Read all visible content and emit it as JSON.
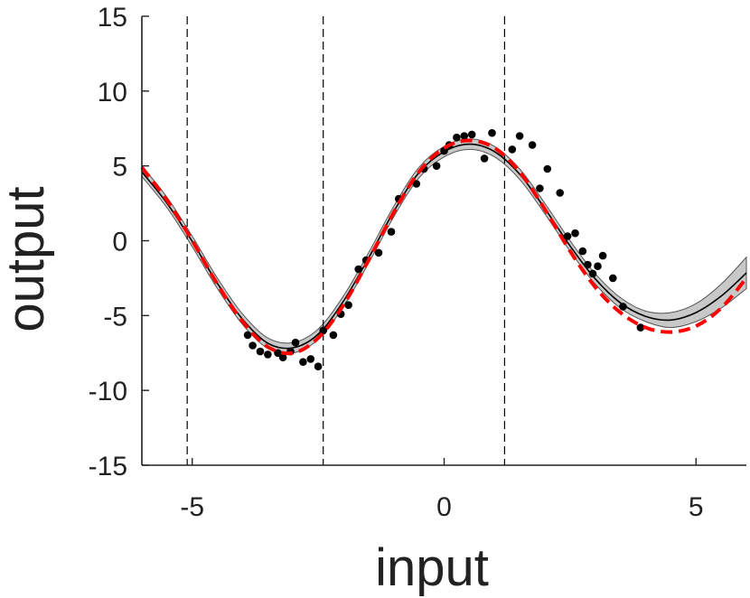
{
  "chart_data": {
    "type": "line",
    "xlabel": "input",
    "ylabel": "output",
    "xlim": [
      -6,
      6
    ],
    "ylim": [
      -15,
      15
    ],
    "xticks": [
      "-5",
      "0",
      "5"
    ],
    "yticks": [
      "15",
      "10",
      "5",
      "0",
      "-5",
      "-10",
      "-15"
    ],
    "xtick_values": [
      -5,
      0,
      5
    ],
    "ytick_values": [
      15,
      10,
      5,
      0,
      -5,
      -10,
      -15
    ],
    "grid": false,
    "box": "left-bottom",
    "vlines": [
      -5.1,
      -2.4,
      1.2
    ],
    "series": [
      {
        "role": "confidence-band",
        "color": "#c8c8c8",
        "x": [
          -6,
          -5.5,
          -5,
          -4.5,
          -4,
          -3.5,
          -3,
          -2.5,
          -2,
          -1.5,
          -1,
          -0.5,
          0,
          0.5,
          1,
          1.5,
          2,
          2.5,
          3,
          3.5,
          4,
          4.5,
          5,
          5.5,
          6
        ],
        "upper": [
          5.0,
          2.9,
          0.3,
          -2.5,
          -4.9,
          -6.5,
          -6.8,
          -5.9,
          -3.7,
          -0.8,
          2.3,
          4.9,
          6.3,
          6.8,
          6.3,
          4.8,
          2.5,
          0.0,
          -2.2,
          -3.8,
          -4.7,
          -4.8,
          -4.2,
          -2.9,
          -1.1
        ],
        "lower": [
          4.3,
          2.2,
          -0.4,
          -3.2,
          -5.6,
          -7.2,
          -7.5,
          -6.6,
          -4.4,
          -1.5,
          1.6,
          4.2,
          5.6,
          6.1,
          5.6,
          4.1,
          1.8,
          -0.7,
          -2.9,
          -4.5,
          -5.4,
          -5.8,
          -5.4,
          -4.5,
          -3.2
        ]
      },
      {
        "role": "mean",
        "color": "#000000",
        "x": [
          -6,
          -5.5,
          -5,
          -4.5,
          -4,
          -3.5,
          -3,
          -2.5,
          -2,
          -1.5,
          -1,
          -0.5,
          0,
          0.5,
          1,
          1.5,
          2,
          2.5,
          3,
          3.5,
          4,
          4.5,
          5,
          5.5,
          6
        ],
        "y": [
          4.6,
          2.5,
          -0.05,
          -2.85,
          -5.25,
          -6.85,
          -7.15,
          -6.25,
          -4.05,
          -1.15,
          1.95,
          4.55,
          5.95,
          6.45,
          5.95,
          4.45,
          2.15,
          -0.35,
          -2.55,
          -4.15,
          -5.05,
          -5.3,
          -4.8,
          -3.7,
          -2.15
        ]
      },
      {
        "role": "true-function",
        "color": "#ff0000",
        "dashed": true,
        "x": [
          -6,
          -5.5,
          -5,
          -4.5,
          -4,
          -3.5,
          -3,
          -2.5,
          -2,
          -1.5,
          -1,
          -0.5,
          0,
          0.5,
          1,
          1.5,
          2,
          2.5,
          3,
          3.5,
          4,
          4.5,
          5,
          5.5,
          6
        ],
        "y": [
          4.9,
          2.7,
          0.0,
          -2.9,
          -5.4,
          -7.1,
          -7.5,
          -6.5,
          -4.3,
          -1.3,
          1.9,
          4.6,
          6.2,
          6.7,
          6.2,
          4.6,
          2.1,
          -0.7,
          -3.1,
          -4.8,
          -5.8,
          -6.1,
          -5.7,
          -4.5,
          -2.5
        ]
      }
    ],
    "scatter": {
      "color": "#000000",
      "points": [
        [
          -3.9,
          -6.3
        ],
        [
          -3.8,
          -7.0
        ],
        [
          -3.65,
          -7.4
        ],
        [
          -3.5,
          -7.6
        ],
        [
          -3.3,
          -7.5
        ],
        [
          -3.2,
          -7.8
        ],
        [
          -3.05,
          -7.4
        ],
        [
          -2.95,
          -6.8
        ],
        [
          -2.8,
          -8.1
        ],
        [
          -2.65,
          -7.9
        ],
        [
          -2.5,
          -8.4
        ],
        [
          -2.4,
          -6.0
        ],
        [
          -2.2,
          -6.3
        ],
        [
          -2.05,
          -4.9
        ],
        [
          -1.9,
          -4.3
        ],
        [
          -1.7,
          -1.9
        ],
        [
          -1.55,
          -1.3
        ],
        [
          -1.3,
          -0.8
        ],
        [
          -1.05,
          0.6
        ],
        [
          -0.9,
          2.8
        ],
        [
          -0.55,
          3.8
        ],
        [
          -0.4,
          4.8
        ],
        [
          -0.15,
          5.0
        ],
        [
          0.0,
          6.0
        ],
        [
          0.1,
          6.4
        ],
        [
          0.25,
          6.9
        ],
        [
          0.4,
          7.0
        ],
        [
          0.55,
          7.1
        ],
        [
          0.8,
          5.5
        ],
        [
          0.95,
          7.2
        ],
        [
          1.35,
          6.1
        ],
        [
          1.5,
          7.0
        ],
        [
          1.75,
          6.4
        ],
        [
          1.9,
          3.5
        ],
        [
          2.05,
          4.8
        ],
        [
          2.3,
          3.2
        ],
        [
          2.45,
          0.3
        ],
        [
          2.6,
          0.5
        ],
        [
          2.75,
          -0.7
        ],
        [
          2.85,
          -1.6
        ],
        [
          2.95,
          -2.2
        ],
        [
          3.05,
          -1.7
        ],
        [
          3.15,
          -1.0
        ],
        [
          3.35,
          -2.5
        ],
        [
          3.55,
          -4.4
        ],
        [
          3.9,
          -5.8
        ]
      ]
    }
  }
}
